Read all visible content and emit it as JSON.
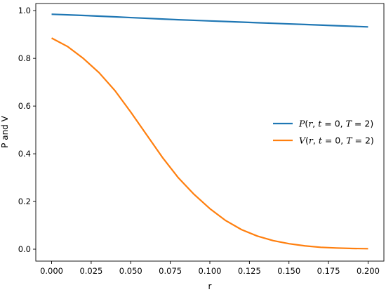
{
  "chart_data": {
    "type": "line",
    "title": "",
    "xlabel": "r",
    "ylabel": "P and V",
    "xlim": [
      -0.01,
      0.21
    ],
    "ylim": [
      -0.05,
      1.03
    ],
    "xticks": [
      0.0,
      0.025,
      0.05,
      0.075,
      0.1,
      0.125,
      0.15,
      0.175,
      0.2
    ],
    "xtick_labels": [
      "0.000",
      "0.025",
      "0.050",
      "0.075",
      "0.100",
      "0.125",
      "0.150",
      "0.175",
      "0.200"
    ],
    "yticks": [
      0.0,
      0.2,
      0.4,
      0.6,
      0.8,
      1.0
    ],
    "ytick_labels": [
      "0.0",
      "0.2",
      "0.4",
      "0.6",
      "0.8",
      "1.0"
    ],
    "grid": false,
    "legend_position": "center-right",
    "x": [
      0.0,
      0.01,
      0.02,
      0.03,
      0.04,
      0.05,
      0.06,
      0.07,
      0.08,
      0.09,
      0.1,
      0.11,
      0.12,
      0.13,
      0.14,
      0.15,
      0.16,
      0.17,
      0.18,
      0.19,
      0.2
    ],
    "series": [
      {
        "name": "P(r, t = 0, T = 2)",
        "color": "#1f77b4",
        "values": [
          0.985,
          0.9825,
          0.98,
          0.977,
          0.974,
          0.971,
          0.968,
          0.965,
          0.962,
          0.9595,
          0.957,
          0.9545,
          0.952,
          0.9495,
          0.947,
          0.9445,
          0.942,
          0.9395,
          0.937,
          0.9345,
          0.932
        ]
      },
      {
        "name": "V(r, t = 0, T = 2)",
        "color": "#ff7f0e",
        "values": [
          0.885,
          0.85,
          0.8,
          0.74,
          0.665,
          0.575,
          0.48,
          0.385,
          0.3,
          0.23,
          0.17,
          0.12,
          0.082,
          0.055,
          0.036,
          0.023,
          0.014,
          0.008,
          0.005,
          0.003,
          0.002
        ]
      }
    ]
  }
}
